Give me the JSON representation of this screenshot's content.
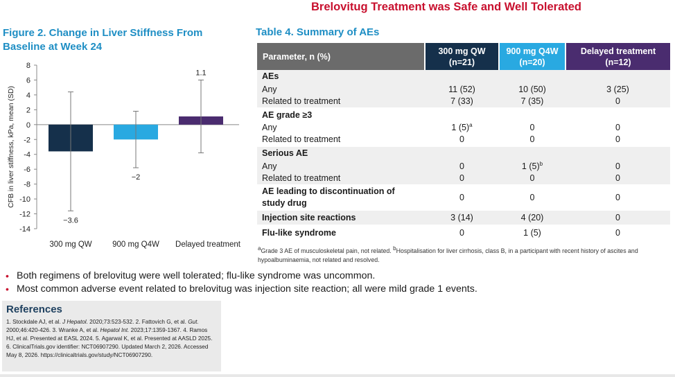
{
  "main_title": "Brelovitug Treatment was Safe and Well Tolerated",
  "figure": {
    "title": "Figure 2. Change in Liver Stiffness From Baseline at Week 24"
  },
  "chart_data": {
    "type": "bar",
    "title": "Figure 2. Change in Liver Stiffness From Baseline at Week 24",
    "ylabel": "CFB in liver stiffness, kPa, mean (SD)",
    "xlabel": "",
    "ylim": [
      -14,
      8
    ],
    "yticks": [
      8,
      6,
      4,
      2,
      0,
      -2,
      -4,
      -6,
      -8,
      -10,
      -12,
      -14
    ],
    "categories": [
      "300 mg QW",
      "900 mg Q4W",
      "Delayed treatment"
    ],
    "values": [
      -3.6,
      -2,
      1.1
    ],
    "value_labels": [
      "−3.6",
      "−2",
      "1.1"
    ],
    "error_low": [
      -11.6,
      -5.8,
      -3.8
    ],
    "error_high": [
      4.4,
      1.8,
      6.0
    ],
    "colors": [
      "#15304b",
      "#29a9e1",
      "#4a2c6f"
    ],
    "grid": false,
    "legend": "none"
  },
  "table": {
    "title": "Table 4. Summary of AEs",
    "header": {
      "param": "Parameter, n (%)",
      "col1_l1": "300 mg QW",
      "col1_l2": "(n=21)",
      "col2_l1": "900 mg Q4W",
      "col2_l2": "(n=20)",
      "col3_l1": "Delayed treatment",
      "col3_l2": "(n=12)"
    },
    "aes": {
      "heading": "AEs",
      "any": {
        "label": "Any",
        "v1": "11 (52)",
        "v2": "10 (50)",
        "v3": "3 (25)"
      },
      "related": {
        "label": "Related to treatment",
        "v1": "7 (33)",
        "v2": "7 (35)",
        "v3": "0"
      }
    },
    "grade3": {
      "heading": "AE grade ≥3",
      "any": {
        "label": "Any",
        "v1": "1 (5)",
        "v1_sup": "a",
        "v2": "0",
        "v3": "0"
      },
      "related": {
        "label": "Related to treatment",
        "v1": "0",
        "v2": "0",
        "v3": "0"
      }
    },
    "serious": {
      "heading": "Serious AE",
      "any": {
        "label": "Any",
        "v1": "0",
        "v2": "1 (5)",
        "v2_sup": "b",
        "v3": "0"
      },
      "related": {
        "label": "Related to treatment",
        "v1": "0",
        "v2": "0",
        "v3": "0"
      }
    },
    "discontinuation": {
      "label": "AE leading to discontinuation of study drug",
      "v1": "0",
      "v2": "0",
      "v3": "0"
    },
    "injection": {
      "label": "Injection site reactions",
      "v1": "3 (14)",
      "v2": "4 (20)",
      "v3": "0"
    },
    "flu": {
      "label": "Flu-like syndrome",
      "v1": "0",
      "v2": "1 (5)",
      "v3": "0"
    },
    "footnote_a_mark": "a",
    "footnote_a": "Grade 3 AE of musculoskeletal pain, not related. ",
    "footnote_b_mark": "b",
    "footnote_b": "Hospitalisation for liver cirrhosis, class B, in a participant with recent history of ascites and hypoalbuminaemia, not related and resolved."
  },
  "bullets": [
    "Both regimens of brelovitug were well tolerated; flu-like syndrome was uncommon.",
    "Most common adverse event related to brelovitug was injection site reaction; all were mild grade 1 events."
  ],
  "references": {
    "heading": "References",
    "r1": "1. Stockdale AJ, et al. ",
    "r1_journal": "J Hepatol.",
    "r1_rest": " 2020;73:523-532. ",
    "r2": "2. Fattovich G, et al. ",
    "r2_journal": "Gut.",
    "r2_rest": " 2000;46:420-426. ",
    "r3": "3. Wranke A, et al. ",
    "r3_journal": "Hepatol Int.",
    "r3_rest": " 2023;17:1359-1367. ",
    "r4": "4. Ramos HJ, et al. Presented at EASL 2024. ",
    "r5": "5. Agarwal K, et al. Presented at AASLD 2025. ",
    "r6": "6. ClinicalTrials.gov identifier: NCT06907290. Updated March 2, 2026. Accessed May 8, 2026. https://clinicaltrials.gov/study/NCT06907290."
  }
}
